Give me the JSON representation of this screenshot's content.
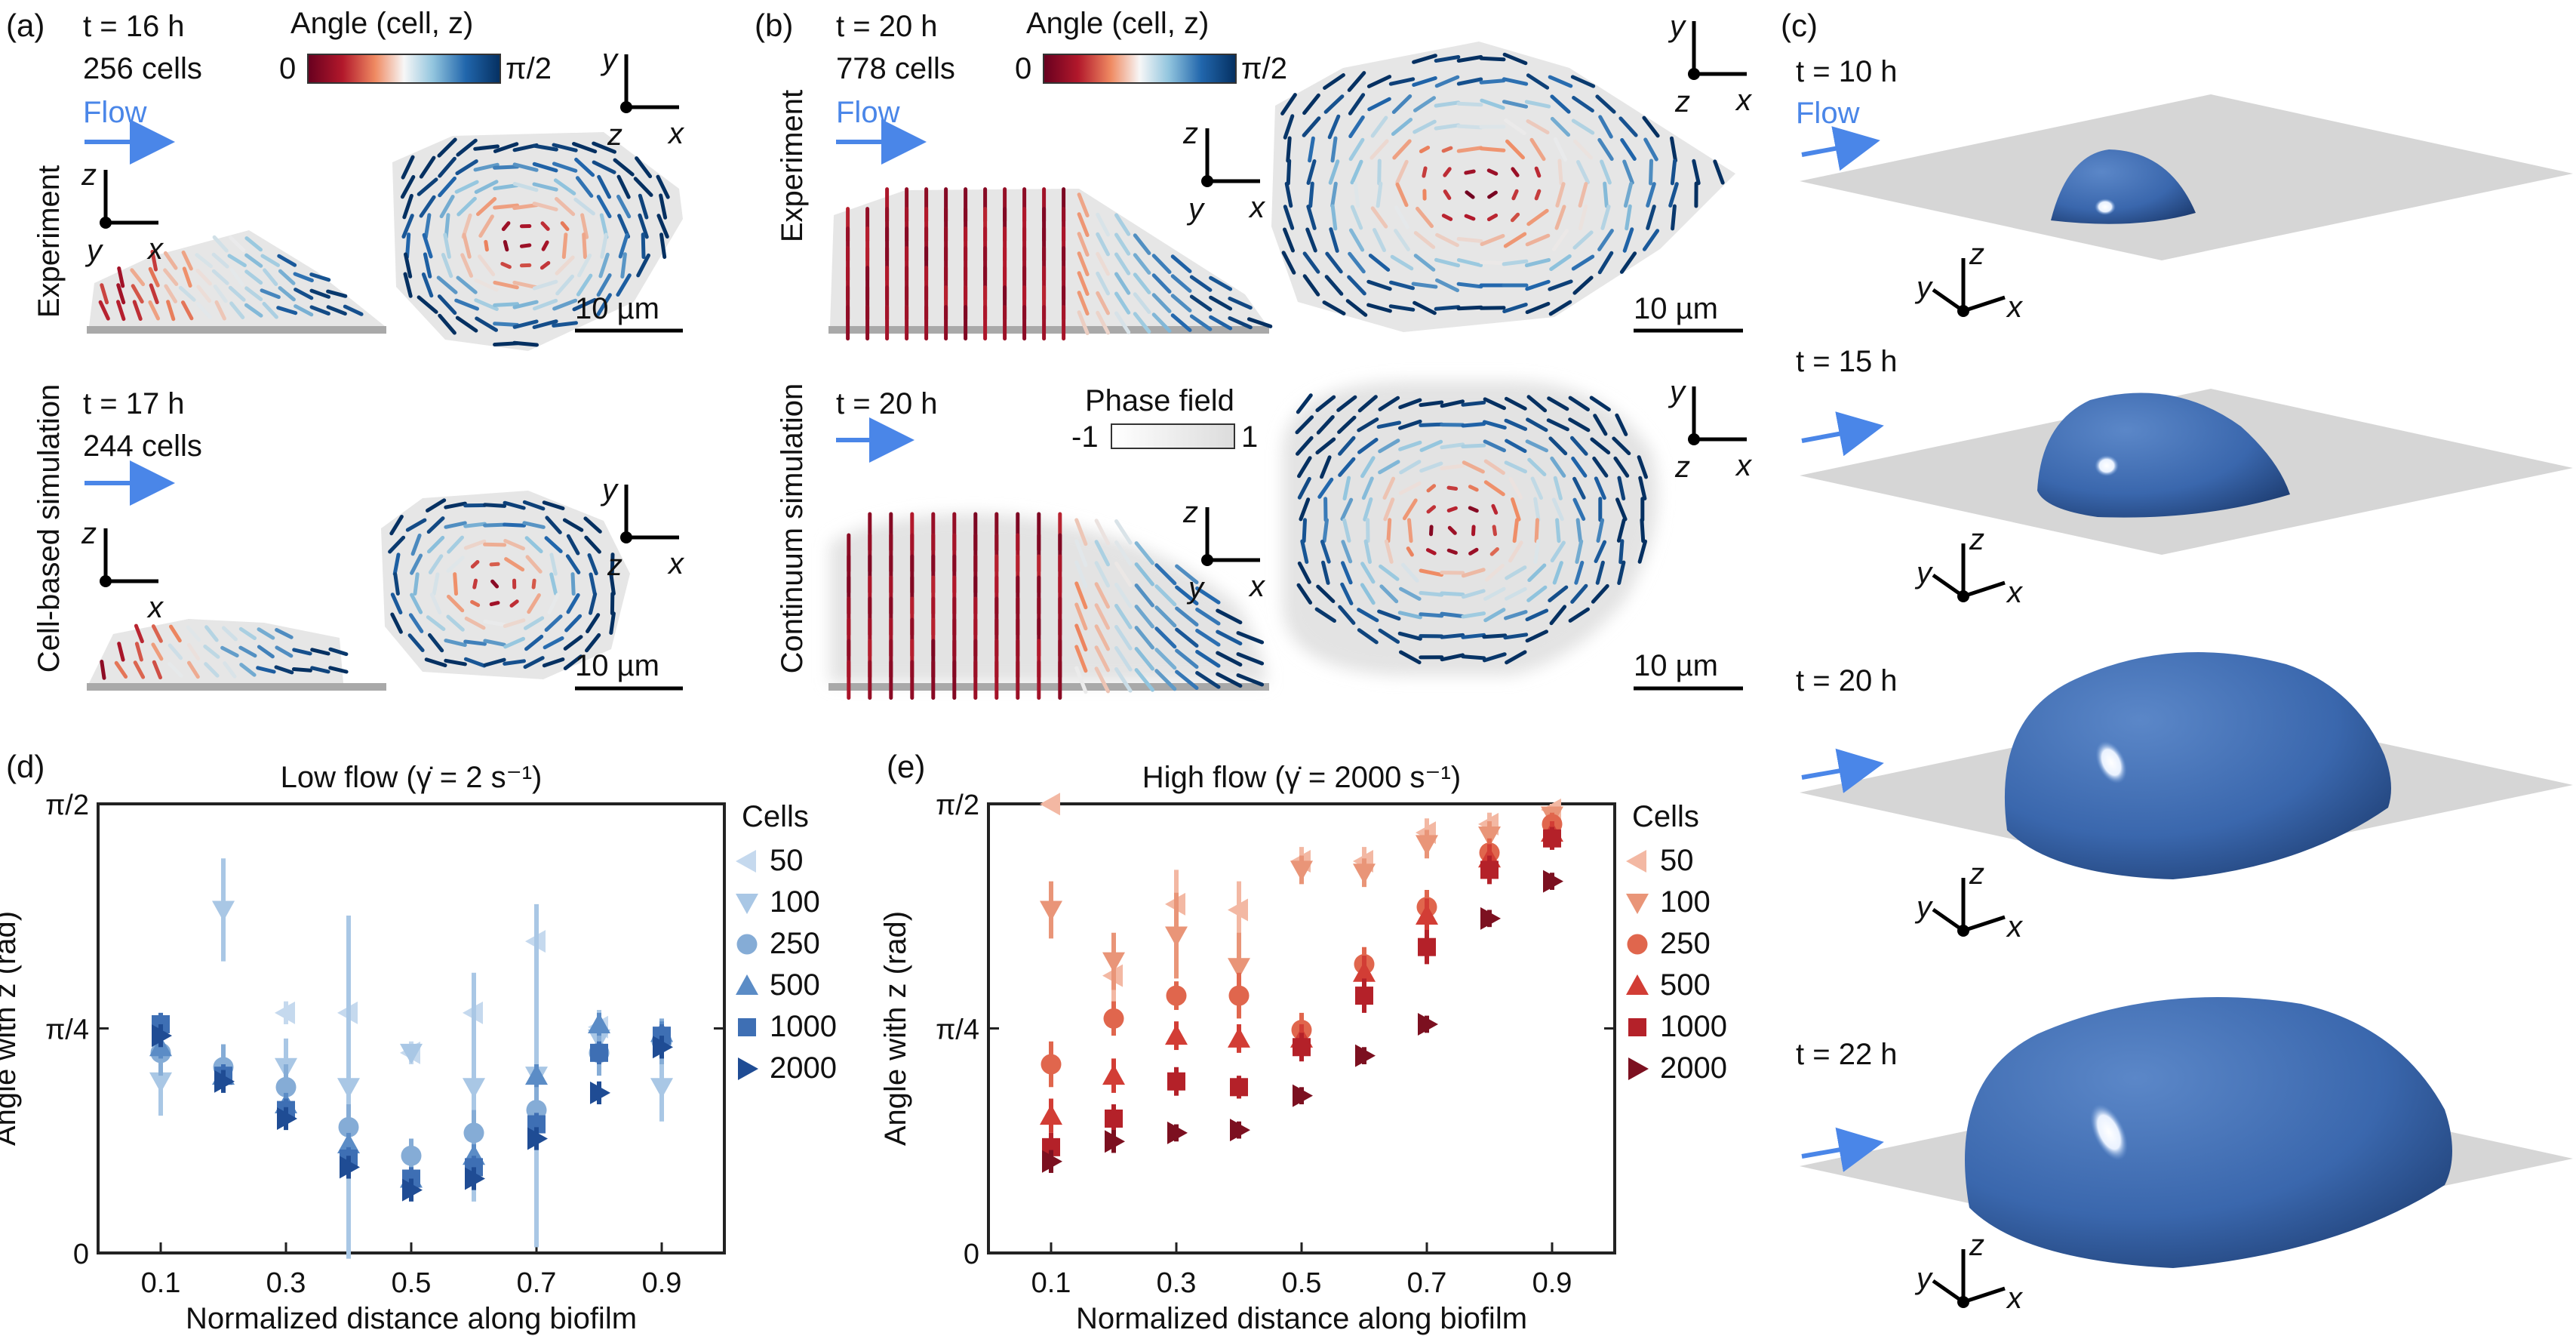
{
  "panels": {
    "a": {
      "label": "(a)",
      "experiment": {
        "time": "t = 16 h",
        "cells": "256 cells",
        "flow": "Flow",
        "row_label": "Experiment",
        "scale": "10 µm"
      },
      "simulation": {
        "time": "t = 17 h",
        "cells": "244 cells",
        "row_label": "Cell-based simulation",
        "scale": "10 µm"
      },
      "colorbar": {
        "title": "Angle (cell, z)",
        "min": "0",
        "max": "π/2"
      }
    },
    "b": {
      "label": "(b)",
      "experiment": {
        "time": "t = 20 h",
        "cells": "778 cells",
        "flow": "Flow",
        "row_label": "Experiment",
        "scale": "10 µm"
      },
      "simulation": {
        "time": "t = 20 h",
        "row_label": "Continuum simulation",
        "scale": "10 µm",
        "phase_title": "Phase field",
        "phase_min": "-1",
        "phase_max": "1"
      },
      "colorbar": {
        "title": "Angle (cell, z)",
        "min": "0",
        "max": "π/2"
      }
    },
    "c": {
      "label": "(c)",
      "flow": "Flow",
      "times": [
        "t = 10 h",
        "t = 15 h",
        "t = 20 h",
        "t = 22 h"
      ]
    },
    "d": {
      "label": "(d)"
    },
    "e": {
      "label": "(e)"
    }
  },
  "axes_letters": {
    "x": "x",
    "y": "y",
    "z": "z"
  },
  "colors": {
    "flow_arrow": "#4a86e8",
    "biofilm_gray": "#e6e6e6",
    "substrate": "#a9a9a9",
    "dome_blue": "#3a67ad"
  },
  "chart_data": [
    {
      "type": "scatter",
      "title": "Low flow (γ̇ = 2 s⁻¹)",
      "xlabel": "Normalized distance along biofilm",
      "ylabel": "Angle with z (rad)",
      "xlim": [
        0,
        1.0
      ],
      "ylim": [
        0,
        1.5708
      ],
      "x_ticks": [
        "0.1",
        "0.3",
        "0.5",
        "0.7",
        "0.9"
      ],
      "y_ticks": [
        "0",
        "π/4",
        "π/2"
      ],
      "legend_title": "Cells",
      "legend_position": "right",
      "series": [
        {
          "name": "50",
          "marker": "triangle-left",
          "color": "#c5d9ee",
          "x": [
            0.3,
            0.4,
            0.5,
            0.6,
            0.7,
            0.8
          ],
          "y": [
            0.84,
            0.84,
            0.7,
            0.84,
            1.09,
            0.79
          ]
        },
        {
          "name": "100",
          "marker": "triangle-down",
          "color": "#a9c7e5",
          "x": [
            0.1,
            0.2,
            0.3,
            0.4,
            0.5,
            0.6,
            0.7,
            0.8,
            0.9
          ],
          "y": [
            0.6,
            1.2,
            0.65,
            0.58,
            0.7,
            0.58,
            0.62,
            0.75,
            0.58
          ],
          "err": [
            0.12,
            0.18,
            0.1,
            0.6,
            0.0,
            0.4,
            0.6,
            0.1,
            0.12
          ]
        },
        {
          "name": "250",
          "marker": "circle",
          "color": "#85acd6",
          "x": [
            0.1,
            0.2,
            0.3,
            0.4,
            0.5,
            0.6,
            0.7,
            0.8,
            0.9
          ],
          "y": [
            0.7,
            0.65,
            0.58,
            0.44,
            0.34,
            0.42,
            0.5,
            0.7,
            0.74
          ],
          "err": [
            0.08,
            0.08,
            0.08,
            0.08,
            0.06,
            0.08,
            0.08,
            0.08,
            0.08
          ]
        },
        {
          "name": "500",
          "marker": "triangle-up",
          "color": "#5b8cc6",
          "x": [
            0.1,
            0.2,
            0.3,
            0.4,
            0.5,
            0.6,
            0.7,
            0.8,
            0.9
          ],
          "y": [
            0.72,
            0.62,
            0.52,
            0.38,
            0.26,
            0.34,
            0.62,
            0.8,
            0.77
          ]
        },
        {
          "name": "1000",
          "marker": "square",
          "color": "#3e6fb4",
          "x": [
            0.1,
            0.2,
            0.3,
            0.4,
            0.5,
            0.6,
            0.7,
            0.8,
            0.9
          ],
          "y": [
            0.8,
            0.62,
            0.5,
            0.33,
            0.26,
            0.3,
            0.45,
            0.7,
            0.76
          ]
        },
        {
          "name": "2000",
          "marker": "triangle-right",
          "color": "#1f4c94",
          "x": [
            0.1,
            0.2,
            0.3,
            0.4,
            0.5,
            0.6,
            0.7,
            0.8,
            0.9
          ],
          "y": [
            0.76,
            0.6,
            0.47,
            0.3,
            0.22,
            0.26,
            0.4,
            0.56,
            0.72
          ]
        }
      ]
    },
    {
      "type": "scatter",
      "title": "High flow  (γ̇ = 2000 s⁻¹)",
      "xlabel": "Normalized distance along biofilm",
      "ylabel": "Angle with z (rad)",
      "xlim": [
        0,
        1.0
      ],
      "ylim": [
        0,
        1.5708
      ],
      "x_ticks": [
        "0.1",
        "0.3",
        "0.5",
        "0.7",
        "0.9"
      ],
      "y_ticks": [
        "0",
        "π/4",
        "π/2"
      ],
      "legend_title": "Cells",
      "legend_position": "right",
      "series": [
        {
          "name": "50",
          "marker": "triangle-left",
          "color": "#f3b8a3",
          "x": [
            0.1,
            0.2,
            0.3,
            0.4,
            0.5,
            0.6,
            0.7,
            0.8,
            0.9
          ],
          "y": [
            1.57,
            0.97,
            1.22,
            1.2,
            1.37,
            1.37,
            1.47,
            1.5,
            1.55
          ],
          "err": [
            0.0,
            0.1,
            0.12,
            0.1,
            0.05,
            0.05,
            0.05,
            0.04,
            0.03
          ]
        },
        {
          "name": "100",
          "marker": "triangle-down",
          "color": "#e99578",
          "x": [
            0.1,
            0.2,
            0.3,
            0.4,
            0.5,
            0.6,
            0.7,
            0.8,
            0.9
          ],
          "y": [
            1.2,
            1.02,
            1.11,
            1.0,
            1.34,
            1.33,
            1.43,
            1.46,
            1.53
          ],
          "err": [
            0.1,
            0.1,
            0.15,
            0.12,
            0.05,
            0.05,
            0.05,
            0.05,
            0.03
          ]
        },
        {
          "name": "250",
          "marker": "circle",
          "color": "#e0664d",
          "x": [
            0.1,
            0.2,
            0.3,
            0.4,
            0.5,
            0.6,
            0.7,
            0.8,
            0.9
          ],
          "y": [
            0.66,
            0.82,
            0.9,
            0.9,
            0.78,
            1.01,
            1.21,
            1.4,
            1.5
          ],
          "err": [
            0.08,
            0.06,
            0.05,
            0.08,
            0.06,
            0.06,
            0.06,
            0.05,
            0.04
          ]
        },
        {
          "name": "500",
          "marker": "triangle-up",
          "color": "#d23d35",
          "x": [
            0.1,
            0.2,
            0.3,
            0.4,
            0.5,
            0.6,
            0.7,
            0.8,
            0.9
          ],
          "y": [
            0.48,
            0.62,
            0.76,
            0.75,
            0.75,
            0.98,
            1.18,
            1.38,
            1.47
          ],
          "err": [
            0.06,
            0.06,
            0.05,
            0.05,
            0.05,
            0.06,
            0.06,
            0.05,
            0.04
          ]
        },
        {
          "name": "1000",
          "marker": "square",
          "color": "#b42129",
          "x": [
            0.1,
            0.2,
            0.3,
            0.4,
            0.5,
            0.6,
            0.7,
            0.8,
            0.9
          ],
          "y": [
            0.37,
            0.47,
            0.6,
            0.58,
            0.72,
            0.9,
            1.07,
            1.34,
            1.45
          ],
          "err": [
            0.05,
            0.05,
            0.05,
            0.04,
            0.05,
            0.06,
            0.06,
            0.05,
            0.04
          ]
        },
        {
          "name": "2000",
          "marker": "triangle-right",
          "color": "#7c1020",
          "x": [
            0.1,
            0.2,
            0.3,
            0.4,
            0.5,
            0.6,
            0.7,
            0.8,
            0.9
          ],
          "y": [
            0.32,
            0.39,
            0.42,
            0.43,
            0.55,
            0.69,
            0.8,
            1.17,
            1.3
          ],
          "err": [
            0.04,
            0.04,
            0.03,
            0.03,
            0.03,
            0.03,
            0.03,
            0.03,
            0.03
          ]
        }
      ]
    }
  ]
}
